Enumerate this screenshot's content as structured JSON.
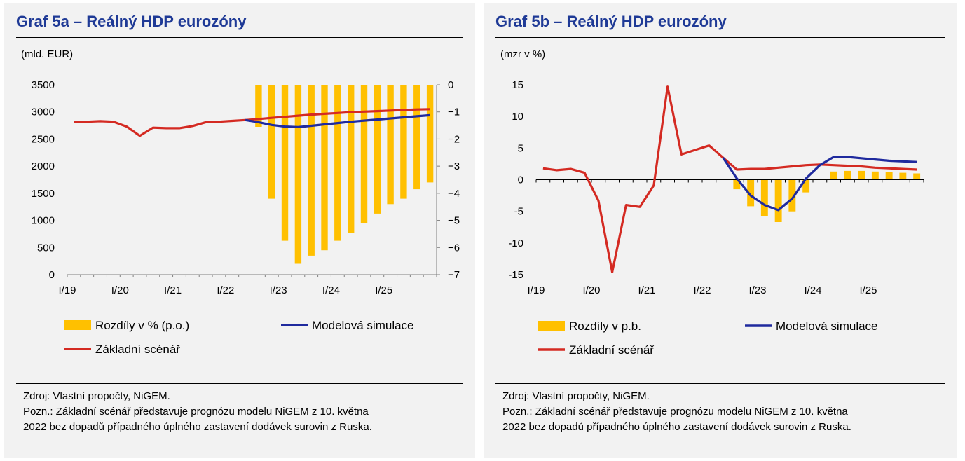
{
  "panels": [
    {
      "title": "Graf 5a – Reálný HDP eurozóny",
      "unit_label": "(mld. EUR)",
      "source": "Zdroj: Vlastní propočty, NiGEM.",
      "note_line1": "Pozn.: Základní scénář představuje prognózu modelu NiGEM z 10. května",
      "note_line2": "2022 bez dopadů případného úplného zastavení dodávek surovin z Ruska."
    },
    {
      "title": "Graf 5b – Reálný HDP eurozóny",
      "unit_label": "(mzr v %)",
      "source": "Zdroj: Vlastní propočty, NiGEM.",
      "note_line1": "Pozn.: Základní scénář představuje prognózu modelu NiGEM z 10. května",
      "note_line2": "2022 bez dopadů případného úplného zastavení dodávek surovin z Ruska."
    }
  ],
  "chart_data": [
    {
      "type": "bar+line",
      "title": "Graf 5a – Reálný HDP eurozóny",
      "ylabel": "(mld. EUR)",
      "x": [
        "I/19",
        "II/19",
        "III/19",
        "IV/19",
        "I/20",
        "II/20",
        "III/20",
        "IV/20",
        "I/21",
        "II/21",
        "III/21",
        "IV/21",
        "I/22",
        "II/22",
        "III/22",
        "IV/22",
        "I/23",
        "II/23",
        "III/23",
        "IV/23",
        "I/24",
        "II/24",
        "III/24",
        "IV/24",
        "I/25",
        "II/25",
        "III/25",
        "IV/25"
      ],
      "x_tick_labels": [
        "I/19",
        "I/20",
        "I/21",
        "I/22",
        "I/23",
        "I/24",
        "I/25"
      ],
      "ylim_left": [
        0,
        3500
      ],
      "yticks_left": [
        0,
        500,
        1000,
        1500,
        2000,
        2500,
        3000,
        3500
      ],
      "ylim_right": [
        -7,
        0
      ],
      "yticks_right": [
        0,
        -1,
        -2,
        -3,
        -4,
        -5,
        -6,
        -7
      ],
      "bars_axis": "right",
      "colors": {
        "bars": "#ffc000",
        "simulation": "#1f2a9e",
        "baseline": "#d42a22"
      },
      "series": [
        {
          "name": "Rozdíly v % (p.o.)",
          "kind": "bar",
          "values": [
            null,
            null,
            null,
            null,
            null,
            null,
            null,
            null,
            null,
            null,
            null,
            null,
            null,
            null,
            -1.55,
            -4.2,
            -5.75,
            -6.6,
            -6.3,
            -6.1,
            -5.75,
            -5.45,
            -5.1,
            -4.75,
            -4.4,
            -4.2,
            -3.85,
            -3.6
          ]
        },
        {
          "name": "Modelová simulace",
          "kind": "line",
          "values": [
            null,
            null,
            null,
            null,
            null,
            null,
            null,
            null,
            null,
            null,
            null,
            null,
            null,
            2850,
            2810,
            2760,
            2730,
            2720,
            2745,
            2770,
            2795,
            2820,
            2840,
            2860,
            2880,
            2900,
            2920,
            2940
          ]
        },
        {
          "name": "Základní scénář",
          "kind": "line",
          "values": [
            2810,
            2820,
            2830,
            2820,
            2730,
            2560,
            2710,
            2700,
            2700,
            2740,
            2810,
            2820,
            2835,
            2850,
            2870,
            2890,
            2910,
            2930,
            2950,
            2965,
            2980,
            2995,
            3005,
            3015,
            3025,
            3035,
            3045,
            3050
          ]
        }
      ],
      "legend": [
        {
          "label": "Rozdíly v % (p.o.)",
          "kind": "bar"
        },
        {
          "label": "Modelová simulace",
          "kind": "line"
        },
        {
          "label": "Základní scénář",
          "kind": "line"
        }
      ]
    },
    {
      "type": "bar+line",
      "title": "Graf 5b – Reálný HDP eurozóny",
      "ylabel": "(mzr v %)",
      "x": [
        "I/19",
        "II/19",
        "III/19",
        "IV/19",
        "I/20",
        "II/20",
        "III/20",
        "IV/20",
        "I/21",
        "II/21",
        "III/21",
        "IV/21",
        "I/22",
        "II/22",
        "III/22",
        "IV/22",
        "I/23",
        "II/23",
        "III/23",
        "IV/23",
        "I/24",
        "II/24",
        "III/24",
        "IV/24",
        "I/25",
        "II/25",
        "III/25",
        "IV/25"
      ],
      "x_tick_labels": [
        "I/19",
        "I/20",
        "I/21",
        "I/22",
        "I/23",
        "I/24",
        "I/25"
      ],
      "ylim": [
        -15,
        15
      ],
      "yticks": [
        15,
        10,
        5,
        0,
        -5,
        -10,
        -15
      ],
      "colors": {
        "bars": "#ffc000",
        "simulation": "#1f2a9e",
        "baseline": "#d42a22"
      },
      "series": [
        {
          "name": "Rozdíly v p.b.",
          "kind": "bar",
          "values": [
            null,
            null,
            null,
            null,
            null,
            null,
            null,
            null,
            null,
            null,
            null,
            null,
            null,
            null,
            -1.5,
            -4.2,
            -5.7,
            -6.7,
            -5.0,
            -2.0,
            null,
            1.3,
            1.4,
            1.4,
            1.3,
            1.2,
            1.1,
            1.0
          ]
        },
        {
          "name": "Modelová simulace",
          "kind": "line",
          "values": [
            null,
            null,
            null,
            null,
            null,
            null,
            null,
            null,
            null,
            null,
            null,
            null,
            null,
            3.5,
            0.2,
            -2.5,
            -4.0,
            -4.8,
            -3.0,
            0.2,
            2.3,
            3.6,
            3.6,
            3.4,
            3.2,
            3.0,
            2.9,
            2.8
          ]
        },
        {
          "name": "Základní scénář",
          "kind": "line",
          "values": [
            1.8,
            1.5,
            1.7,
            1.1,
            -3.3,
            -14.6,
            -4.0,
            -4.3,
            -0.9,
            14.7,
            4.0,
            4.7,
            5.4,
            3.5,
            1.6,
            1.7,
            1.7,
            1.9,
            2.1,
            2.3,
            2.4,
            2.3,
            2.2,
            2.1,
            1.9,
            1.8,
            1.7,
            1.6
          ]
        }
      ],
      "legend": [
        {
          "label": "Rozdíly v p.b.",
          "kind": "bar"
        },
        {
          "label": "Modelová simulace",
          "kind": "line"
        },
        {
          "label": "Základní scénář",
          "kind": "line"
        }
      ]
    }
  ]
}
